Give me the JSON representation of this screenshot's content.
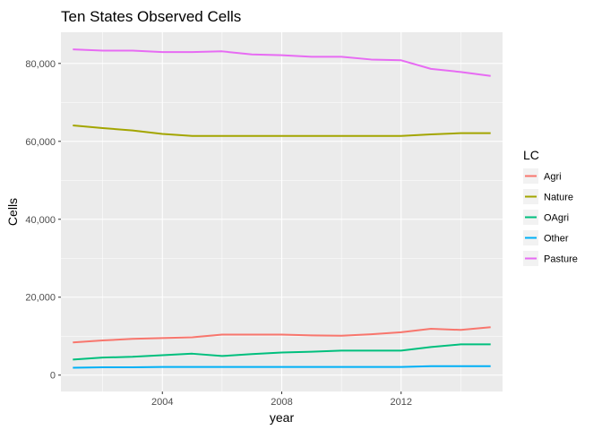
{
  "chart_data": {
    "type": "line",
    "title": "Ten States Observed Cells",
    "xlabel": "year",
    "ylabel": "Cells",
    "xlim": [
      2000.6,
      2015.4
    ],
    "ylim": [
      -4200,
      88000
    ],
    "x_ticks": [
      2004,
      2008,
      2012
    ],
    "x_tick_labels": [
      "2004",
      "2008",
      "2012"
    ],
    "y_ticks": [
      0,
      20000,
      40000,
      60000,
      80000
    ],
    "y_tick_labels": [
      "0",
      "20,000",
      "40,000",
      "60,000",
      "80,000"
    ],
    "grid": true,
    "legend": {
      "title": "LC",
      "position": "right"
    },
    "x": [
      2001,
      2002,
      2003,
      2004,
      2005,
      2006,
      2007,
      2008,
      2009,
      2010,
      2011,
      2012,
      2013,
      2014,
      2015
    ],
    "series": [
      {
        "name": "Agri",
        "color": "#F8766D",
        "values": [
          8400,
          8900,
          9300,
          9500,
          9700,
          10400,
          10400,
          10400,
          10200,
          10100,
          10500,
          11000,
          11900,
          11600,
          12300
        ]
      },
      {
        "name": "Nature",
        "color": "#A3A500",
        "values": [
          64100,
          63400,
          62800,
          61900,
          61400,
          61400,
          61400,
          61400,
          61400,
          61400,
          61400,
          61400,
          61800,
          62100,
          62100
        ]
      },
      {
        "name": "OAgri",
        "color": "#00BF7D",
        "values": [
          4000,
          4500,
          4700,
          5100,
          5500,
          4900,
          5400,
          5800,
          6000,
          6300,
          6300,
          6300,
          7200,
          7900,
          7900
        ]
      },
      {
        "name": "Other",
        "color": "#00B0F6",
        "values": [
          1900,
          2000,
          2000,
          2100,
          2100,
          2100,
          2100,
          2100,
          2100,
          2100,
          2100,
          2100,
          2300,
          2300,
          2300
        ]
      },
      {
        "name": "Pasture",
        "color": "#E76BF3",
        "values": [
          83600,
          83300,
          83300,
          82900,
          82900,
          83100,
          82300,
          82100,
          81700,
          81700,
          81000,
          80800,
          78600,
          77800,
          76800
        ]
      }
    ]
  }
}
